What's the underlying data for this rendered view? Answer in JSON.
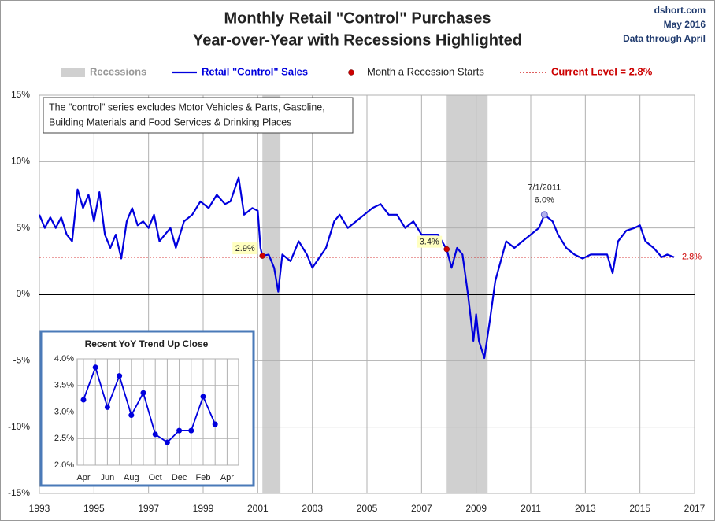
{
  "chart_data": [
    {
      "type": "line",
      "title": "Monthly Retail \"Control\" Purchases",
      "subtitle": "Year-over-Year with Recessions Highlighted",
      "source": "dshort.com",
      "date": "May 2016",
      "data_note": "Data through April",
      "note_lines": [
        "The \"control\" series excludes Motor Vehicles & Parts, Gasoline,",
        "Building Materials and Food Services & Drinking Places"
      ],
      "x": [
        1993.0,
        1993.2,
        1993.4,
        1993.6,
        1993.8,
        1994.0,
        1994.2,
        1994.4,
        1994.6,
        1994.8,
        1995.0,
        1995.2,
        1995.4,
        1995.6,
        1995.8,
        1996.0,
        1996.2,
        1996.4,
        1996.6,
        1996.8,
        1997.0,
        1997.2,
        1997.4,
        1997.6,
        1997.8,
        1998.0,
        1998.3,
        1998.6,
        1998.9,
        1999.2,
        1999.5,
        1999.8,
        2000.0,
        2000.3,
        2000.5,
        2000.8,
        2001.0,
        2001.1,
        2001.17,
        2001.4,
        2001.6,
        2001.75,
        2001.9,
        2002.2,
        2002.5,
        2002.8,
        2003.0,
        2003.2,
        2003.5,
        2003.8,
        2004.0,
        2004.3,
        2004.6,
        2004.9,
        2005.2,
        2005.5,
        2005.8,
        2006.1,
        2006.4,
        2006.7,
        2007.0,
        2007.3,
        2007.6,
        2007.92,
        2008.1,
        2008.3,
        2008.5,
        2008.7,
        2008.9,
        2009.0,
        2009.1,
        2009.3,
        2009.5,
        2009.7,
        2009.9,
        2010.1,
        2010.4,
        2010.7,
        2011.0,
        2011.3,
        2011.5,
        2011.8,
        2012.0,
        2012.3,
        2012.6,
        2012.9,
        2013.2,
        2013.5,
        2013.8,
        2014.0,
        2014.2,
        2014.5,
        2014.8,
        2015.0,
        2015.2,
        2015.5,
        2015.8,
        2016.0,
        2016.25
      ],
      "series": [
        {
          "name": "Retail \"Control\" Sales",
          "color": "#0000dd",
          "values": [
            6.0,
            5.0,
            5.8,
            5.0,
            5.8,
            4.5,
            4.0,
            7.9,
            6.5,
            7.5,
            5.5,
            7.7,
            4.5,
            3.5,
            4.5,
            2.7,
            5.5,
            6.5,
            5.2,
            5.5,
            5.0,
            6.0,
            4.0,
            4.5,
            5.0,
            3.5,
            5.5,
            6.0,
            7.0,
            6.5,
            7.5,
            6.8,
            7.0,
            8.8,
            6.0,
            6.5,
            6.3,
            3.5,
            2.9,
            3.0,
            2.0,
            0.2,
            3.0,
            2.5,
            4.0,
            3.0,
            2.0,
            2.6,
            3.5,
            5.5,
            6.0,
            5.0,
            5.5,
            6.0,
            6.5,
            6.8,
            6.0,
            6.0,
            5.0,
            5.5,
            4.5,
            4.5,
            4.5,
            3.4,
            2.0,
            3.5,
            3.0,
            0.0,
            -3.5,
            -1.5,
            -3.5,
            -4.8,
            -2.0,
            1.0,
            2.5,
            4.0,
            3.5,
            4.0,
            4.5,
            5.0,
            6.0,
            5.5,
            4.5,
            3.5,
            3.0,
            2.7,
            3.0,
            3.0,
            3.0,
            1.6,
            4.0,
            4.8,
            5.0,
            5.2,
            4.0,
            3.5,
            2.8,
            3.0,
            2.8
          ]
        }
      ],
      "recession_label": "Recessions",
      "recession_color": "#d0d0d0",
      "recessions": [
        [
          2001.17,
          2001.83
        ],
        [
          2007.92,
          2009.42
        ]
      ],
      "recession_starts": {
        "name": "Month a Recession Starts",
        "color": "#cc0000",
        "x": [
          2001.17,
          2007.92
        ],
        "values": [
          2.9,
          3.4
        ],
        "value_labels": [
          "2.9%",
          "3.4%"
        ]
      },
      "reference_line": {
        "value": 2.8,
        "label": "2.8%",
        "legend": "Current Level = 2.8%",
        "color": "#cc0000"
      },
      "annotations": [
        {
          "x": 2011.5,
          "y": 6.0,
          "label": "7/1/2011",
          "value_label": "6.0%"
        }
      ],
      "xlim": [
        1993,
        2017
      ],
      "xticks": [
        1993,
        1995,
        1997,
        1999,
        2001,
        2003,
        2005,
        2007,
        2009,
        2011,
        2013,
        2015,
        2017
      ],
      "ylim": [
        -15,
        15
      ],
      "yticks": [
        {
          "value": -15,
          "label": "-15%"
        },
        {
          "value": -10,
          "label": "-10%"
        },
        {
          "value": -5,
          "label": "-5%"
        },
        {
          "value": 0,
          "label": "0%"
        },
        {
          "value": 5,
          "label": "5%"
        },
        {
          "value": 10,
          "label": "10%"
        },
        {
          "value": 15,
          "label": "15%"
        }
      ],
      "grid": true
    },
    {
      "type": "line",
      "title": "Recent  YoY Trend Up Close",
      "categories": [
        "Apr",
        null,
        "Jun",
        null,
        "Aug",
        null,
        "Oct",
        null,
        "Dec",
        null,
        "Feb",
        null,
        "Apr"
      ],
      "series": [
        {
          "name": "Recent",
          "color": "#0000dd",
          "values": [
            3.23,
            3.84,
            3.09,
            3.68,
            2.94,
            3.36,
            2.58,
            2.43,
            2.65,
            2.65,
            3.29,
            2.77,
            null
          ]
        }
      ],
      "ylim": [
        2.0,
        4.0
      ],
      "yticks": [
        {
          "value": 2.0,
          "label": "2.0%"
        },
        {
          "value": 2.5,
          "label": "2.5%"
        },
        {
          "value": 3.0,
          "label": "3.0%"
        },
        {
          "value": 3.5,
          "label": "3.5%"
        },
        {
          "value": 4.0,
          "label": "4.0%"
        }
      ],
      "grid": true
    }
  ]
}
